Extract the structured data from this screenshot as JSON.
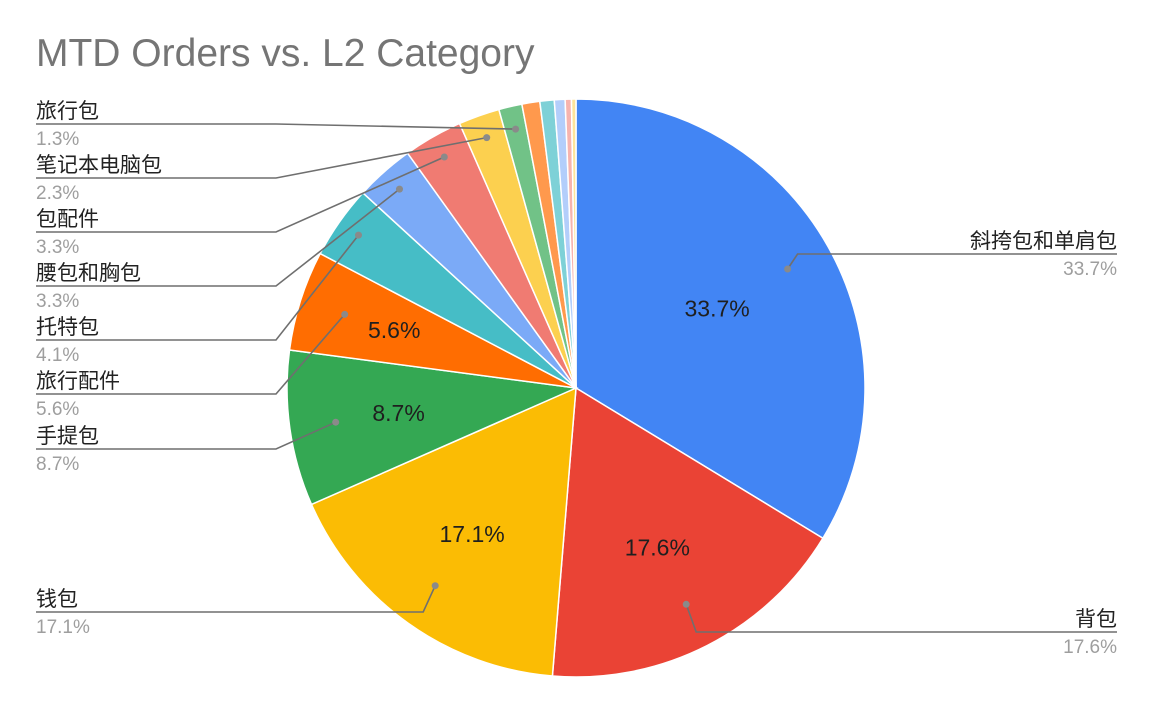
{
  "chart_data": {
    "type": "pie",
    "title": "MTD Orders vs. L2 Category",
    "slices": [
      {
        "label": "斜挎包和单肩包",
        "value": 33.7,
        "value_label": "33.7%",
        "color": "#4285F4",
        "inner_label": "33.7%"
      },
      {
        "label": "背包",
        "value": 17.6,
        "value_label": "17.6%",
        "color": "#EA4335",
        "inner_label": "17.6%"
      },
      {
        "label": "钱包",
        "value": 17.1,
        "value_label": "17.1%",
        "color": "#FBBC04",
        "inner_label": "17.1%"
      },
      {
        "label": "手提包",
        "value": 8.7,
        "value_label": "8.7%",
        "color": "#34A853",
        "inner_label": "8.7%"
      },
      {
        "label": "旅行配件",
        "value": 5.6,
        "value_label": "5.6%",
        "color": "#FF6D01",
        "inner_label": "5.6%"
      },
      {
        "label": "托特包",
        "value": 4.1,
        "value_label": "4.1%",
        "color": "#46BDC6",
        "inner_label": ""
      },
      {
        "label": "腰包和胸包",
        "value": 3.3,
        "value_label": "3.3%",
        "color": "#7BAAF7",
        "inner_label": ""
      },
      {
        "label": "包配件",
        "value": 3.3,
        "value_label": "3.3%",
        "color": "#F07B72",
        "inner_label": ""
      },
      {
        "label": "笔记本电脑包",
        "value": 2.3,
        "value_label": "2.3%",
        "color": "#FCD04F",
        "inner_label": ""
      },
      {
        "label": "旅行包",
        "value": 1.3,
        "value_label": "1.3%",
        "color": "#71C287",
        "inner_label": ""
      },
      {
        "label": "",
        "value": 1.0,
        "value_label": "",
        "color": "#FF994D",
        "inner_label": ""
      },
      {
        "label": "",
        "value": 0.8,
        "value_label": "",
        "color": "#7ED1D7",
        "inner_label": ""
      },
      {
        "label": "",
        "value": 0.6,
        "value_label": "",
        "color": "#B3CEFB",
        "inner_label": ""
      },
      {
        "label": "",
        "value": 0.35,
        "value_label": "",
        "color": "#F7B4AE",
        "inner_label": ""
      },
      {
        "label": "",
        "value": 0.25,
        "value_label": "",
        "color": "#FDE49B",
        "inner_label": ""
      }
    ],
    "start_angle_deg": 0,
    "direction": "clockwise",
    "legend": "callouts"
  }
}
